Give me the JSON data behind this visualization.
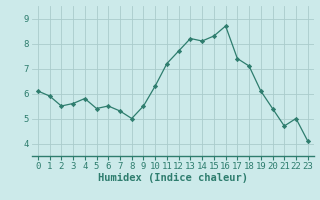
{
  "x": [
    0,
    1,
    2,
    3,
    4,
    5,
    6,
    7,
    8,
    9,
    10,
    11,
    12,
    13,
    14,
    15,
    16,
    17,
    18,
    19,
    20,
    21,
    22,
    23
  ],
  "y": [
    6.1,
    5.9,
    5.5,
    5.6,
    5.8,
    5.4,
    5.5,
    5.3,
    5.0,
    5.5,
    6.3,
    7.2,
    7.7,
    8.2,
    8.1,
    8.3,
    8.7,
    7.4,
    7.1,
    6.1,
    5.4,
    4.7,
    5.0,
    4.1
  ],
  "line_color": "#2e7d6e",
  "marker": "D",
  "marker_size": 2.2,
  "bg_color": "#cceaea",
  "grid_color": "#aacccc",
  "xlabel": "Humidex (Indice chaleur)",
  "xlabel_fontsize": 7.5,
  "tick_fontsize": 6.5,
  "xlim": [
    -0.5,
    23.5
  ],
  "ylim": [
    3.5,
    9.5
  ],
  "yticks": [
    4,
    5,
    6,
    7,
    8,
    9
  ],
  "xticks": [
    0,
    1,
    2,
    3,
    4,
    5,
    6,
    7,
    8,
    9,
    10,
    11,
    12,
    13,
    14,
    15,
    16,
    17,
    18,
    19,
    20,
    21,
    22,
    23
  ],
  "spine_color": "#2e7d6e",
  "tick_color": "#2e7d6e"
}
